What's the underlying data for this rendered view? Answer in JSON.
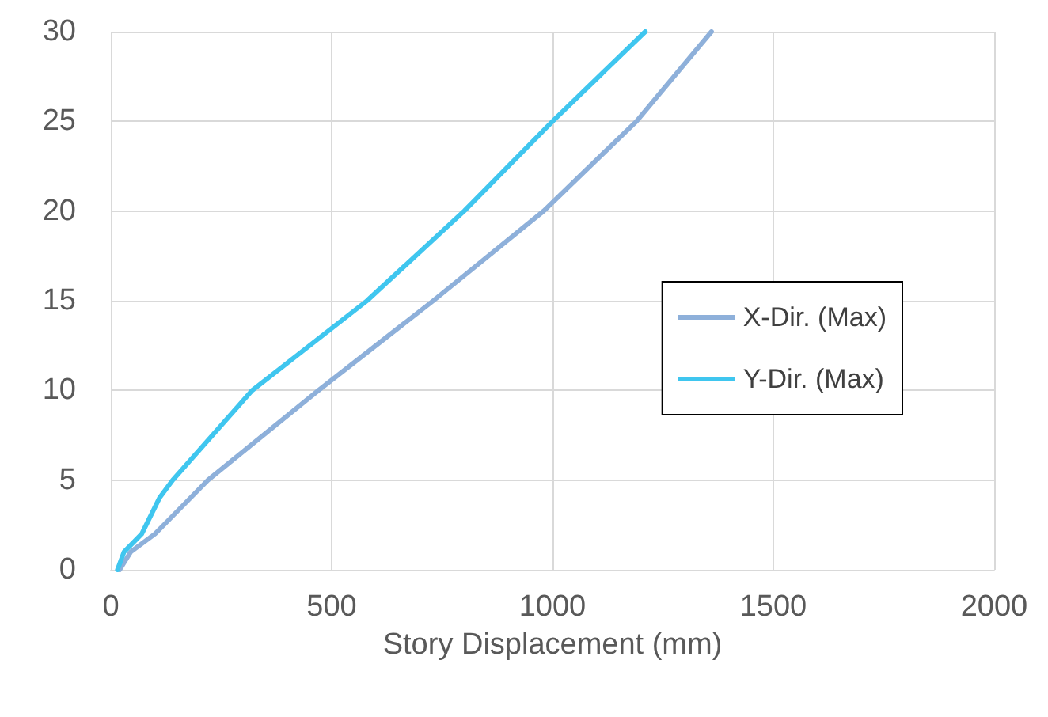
{
  "chart_data": {
    "type": "line",
    "xlabel": "Story Displacement (mm)",
    "xlim": [
      0,
      2000
    ],
    "xticks": [
      0,
      500,
      1000,
      1500,
      2000
    ],
    "ylim": [
      0,
      30
    ],
    "yticks": [
      0,
      5,
      10,
      15,
      20,
      25,
      30
    ],
    "grid": true,
    "legend": "right",
    "marker": "none",
    "line_style": "solid",
    "series": [
      {
        "name": "X-Dir. (Max)",
        "color": "#8eb0da",
        "x": [
          20,
          45,
          100,
          140,
          220,
          470,
          730,
          980,
          1190,
          1360
        ],
        "values": [
          0,
          1,
          2,
          3,
          5,
          10,
          15,
          20,
          25,
          30
        ]
      },
      {
        "name": "Y-Dir. (Max)",
        "color": "#3fc6ef",
        "x": [
          15,
          30,
          70,
          110,
          140,
          320,
          580,
          800,
          1000,
          1210
        ],
        "values": [
          0,
          1,
          2,
          4,
          5,
          10,
          15,
          20,
          25,
          30
        ]
      }
    ]
  }
}
